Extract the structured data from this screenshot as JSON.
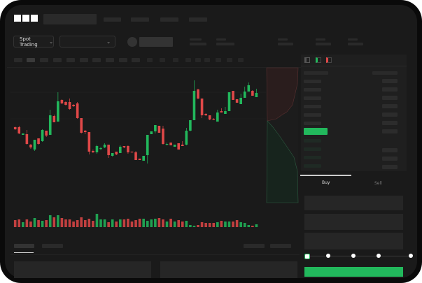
{
  "header": {
    "logo_text": "OKX",
    "market_button": "Spot Trading"
  },
  "order_panel": {
    "tabs": [
      {
        "label": "Buy",
        "active": true
      },
      {
        "label": "Sell",
        "active": false
      }
    ],
    "slider_percent": 0,
    "accent_buy": "#22b85c",
    "accent_sell": "#e04848"
  },
  "chart_data": {
    "type": "candlestick",
    "candles": [
      [
        68,
        69,
        64,
        65
      ],
      [
        68,
        70,
        58,
        59
      ],
      [
        57,
        59,
        57,
        59
      ],
      [
        58,
        64,
        43,
        44
      ],
      [
        43,
        44,
        37,
        39
      ],
      [
        36,
        50,
        34,
        50
      ],
      [
        52,
        52,
        43,
        44
      ],
      [
        48,
        65,
        47,
        64
      ],
      [
        63,
        63,
        54,
        56
      ],
      [
        57,
        93,
        57,
        85
      ],
      [
        84,
        86,
        75,
        75
      ],
      [
        76,
        118,
        76,
        105
      ],
      [
        107,
        108,
        101,
        102
      ],
      [
        104,
        105,
        99,
        100
      ],
      [
        104,
        109,
        93,
        94
      ],
      [
        100,
        101,
        97,
        98
      ],
      [
        102,
        104,
        80,
        81
      ],
      [
        81,
        81,
        59,
        60
      ],
      [
        63,
        64,
        58,
        61
      ],
      [
        61,
        61,
        29,
        33
      ],
      [
        34,
        36,
        31,
        32
      ],
      [
        32,
        43,
        30,
        41
      ],
      [
        37,
        40,
        35,
        38
      ],
      [
        39,
        45,
        38,
        43
      ],
      [
        43,
        43,
        24,
        28
      ],
      [
        27,
        31,
        26,
        31
      ],
      [
        33,
        33,
        28,
        29
      ],
      [
        31,
        42,
        31,
        40
      ],
      [
        41,
        41,
        38,
        39
      ],
      [
        41,
        42,
        30,
        32
      ],
      [
        33,
        33,
        32,
        32
      ],
      [
        32,
        34,
        21,
        21
      ],
      [
        23,
        23,
        21,
        21
      ],
      [
        20,
        27,
        20,
        27
      ],
      [
        28,
        57,
        16,
        57
      ],
      [
        58,
        62,
        58,
        62
      ],
      [
        62,
        71,
        59,
        71
      ],
      [
        70,
        70,
        60,
        60
      ],
      [
        66,
        70,
        43,
        44
      ],
      [
        43,
        46,
        42,
        44
      ],
      [
        46,
        46,
        42,
        42
      ],
      [
        40,
        43,
        40,
        43
      ],
      [
        45,
        45,
        36,
        36
      ],
      [
        43,
        48,
        41,
        41
      ],
      [
        43,
        67,
        42,
        63
      ],
      [
        63,
        78,
        62,
        78
      ],
      [
        78,
        135,
        78,
        120
      ],
      [
        122,
        123,
        108,
        109
      ],
      [
        109,
        109,
        81,
        85
      ],
      [
        87,
        88,
        84,
        85
      ],
      [
        85,
        85,
        78,
        79
      ],
      [
        80,
        81,
        78,
        79
      ],
      [
        76,
        93,
        76,
        89
      ],
      [
        91,
        95,
        89,
        89
      ],
      [
        87,
        97,
        87,
        91
      ],
      [
        91,
        118,
        91,
        118
      ],
      [
        120,
        120,
        107,
        107
      ],
      [
        108,
        108,
        103,
        103
      ],
      [
        101,
        116,
        101,
        110
      ],
      [
        110,
        126,
        110,
        119
      ],
      [
        119,
        132,
        119,
        128
      ],
      [
        120,
        121,
        113,
        113
      ],
      [
        111,
        123,
        111,
        117
      ]
    ],
    "volume": [
      10,
      11,
      7,
      11,
      8,
      13,
      10,
      9,
      10,
      17,
      14,
      17,
      13,
      11,
      11,
      8,
      10,
      14,
      10,
      12,
      9,
      19,
      11,
      11,
      7,
      11,
      8,
      11,
      11,
      12,
      8,
      10,
      12,
      12,
      9,
      11,
      12,
      13,
      11,
      8,
      12,
      8,
      10,
      8,
      9,
      3,
      2,
      3,
      7,
      6,
      6,
      6,
      7,
      9,
      8,
      8,
      8,
      10,
      7,
      6,
      3,
      2,
      4
    ]
  }
}
